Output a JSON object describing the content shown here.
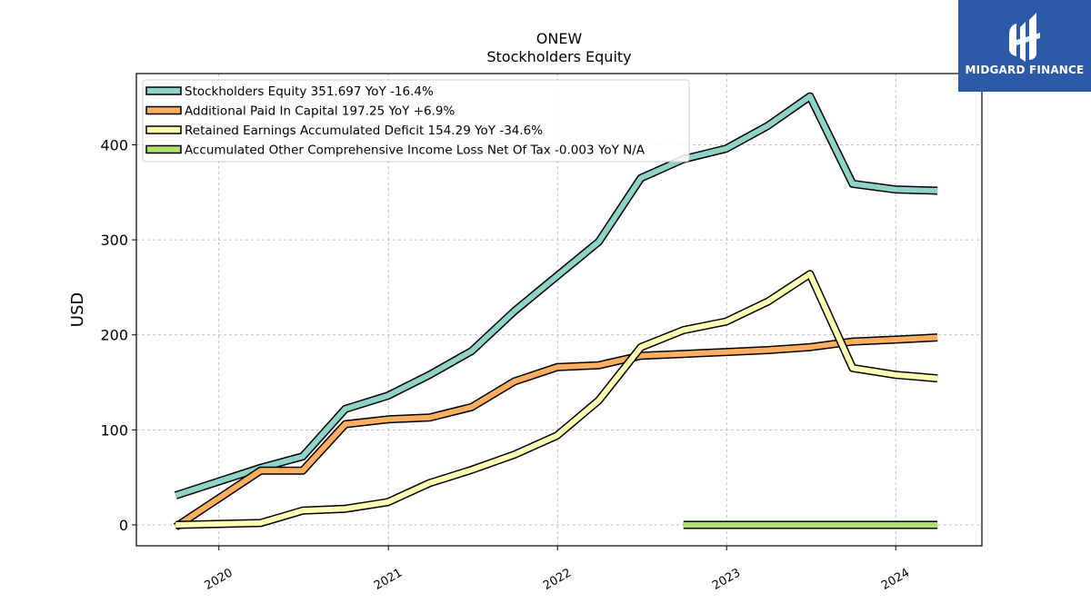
{
  "watermark": {
    "brand": "MIDGARD FINANCE",
    "color": "#2d5aa8"
  },
  "chart_data": {
    "type": "line",
    "title": "ONEW",
    "subtitle": "Stockholders  Equity",
    "xlabel": "",
    "ylabel": "USD",
    "ylim": [
      -22,
      475
    ],
    "xlim": [
      "2019-07-07",
      "2024-07-05"
    ],
    "yticks": [
      0,
      100,
      200,
      300,
      400
    ],
    "xticks": [
      "2020",
      "2021",
      "2022",
      "2023",
      "2024"
    ],
    "grid": true,
    "legend_position": "top-left",
    "series": [
      {
        "name": "Stockholders Equity  351.697 YoY -16.4%",
        "color": "#8dd3c7",
        "x": [
          "2019-09-30",
          "2020-03-31",
          "2020-06-30",
          "2020-09-30",
          "2020-12-31",
          "2021-03-31",
          "2021-06-30",
          "2021-09-30",
          "2021-12-31",
          "2022-03-31",
          "2022-06-30",
          "2022-09-30",
          "2022-12-31",
          "2023-03-31",
          "2023-06-30",
          "2023-09-30",
          "2023-12-31",
          "2024-03-31"
        ],
        "values": [
          31,
          60,
          72,
          122,
          136,
          158,
          183,
          225,
          262,
          298,
          365,
          385,
          396,
          420,
          451,
          359,
          353,
          351.697
        ]
      },
      {
        "name": "Additional Paid In Capital  197.25 YoY +6.9%",
        "color": "#fdae61",
        "x": [
          "2019-09-30",
          "2020-03-31",
          "2020-06-30",
          "2020-09-30",
          "2020-12-31",
          "2021-03-31",
          "2021-06-30",
          "2021-09-30",
          "2021-12-31",
          "2022-03-31",
          "2022-06-30",
          "2022-09-30",
          "2022-12-31",
          "2023-03-31",
          "2023-06-30",
          "2023-09-30",
          "2023-12-31",
          "2024-03-31"
        ],
        "values": [
          -2,
          57,
          57,
          106,
          111,
          113,
          124,
          151,
          166,
          168,
          178,
          180,
          182,
          184,
          187,
          193,
          195,
          197.25
        ]
      },
      {
        "name": "Retained Earnings Accumulated Deficit  154.29 YoY -34.6%",
        "color": "#ffffb3",
        "x": [
          "2019-09-30",
          "2020-03-31",
          "2020-06-30",
          "2020-09-30",
          "2020-12-31",
          "2021-03-31",
          "2021-06-30",
          "2021-09-30",
          "2021-12-31",
          "2022-03-31",
          "2022-06-30",
          "2022-09-30",
          "2022-12-31",
          "2023-03-31",
          "2023-06-30",
          "2023-09-30",
          "2023-12-31",
          "2024-03-31"
        ],
        "values": [
          0,
          2,
          15,
          17,
          24,
          44,
          58,
          74,
          94,
          131,
          187,
          205,
          214,
          235,
          264,
          165,
          158,
          154.29
        ]
      },
      {
        "name": "Accumulated Other Comprehensive Income Loss Net Of Tax  -0.003 YoY N/A",
        "color": "#b3de69",
        "x": [
          "2022-09-30",
          "2022-12-31",
          "2023-03-31",
          "2023-06-30",
          "2023-09-30",
          "2023-12-31",
          "2024-03-31"
        ],
        "values": [
          0,
          0,
          0,
          0,
          0,
          0,
          -0.003
        ]
      }
    ]
  }
}
